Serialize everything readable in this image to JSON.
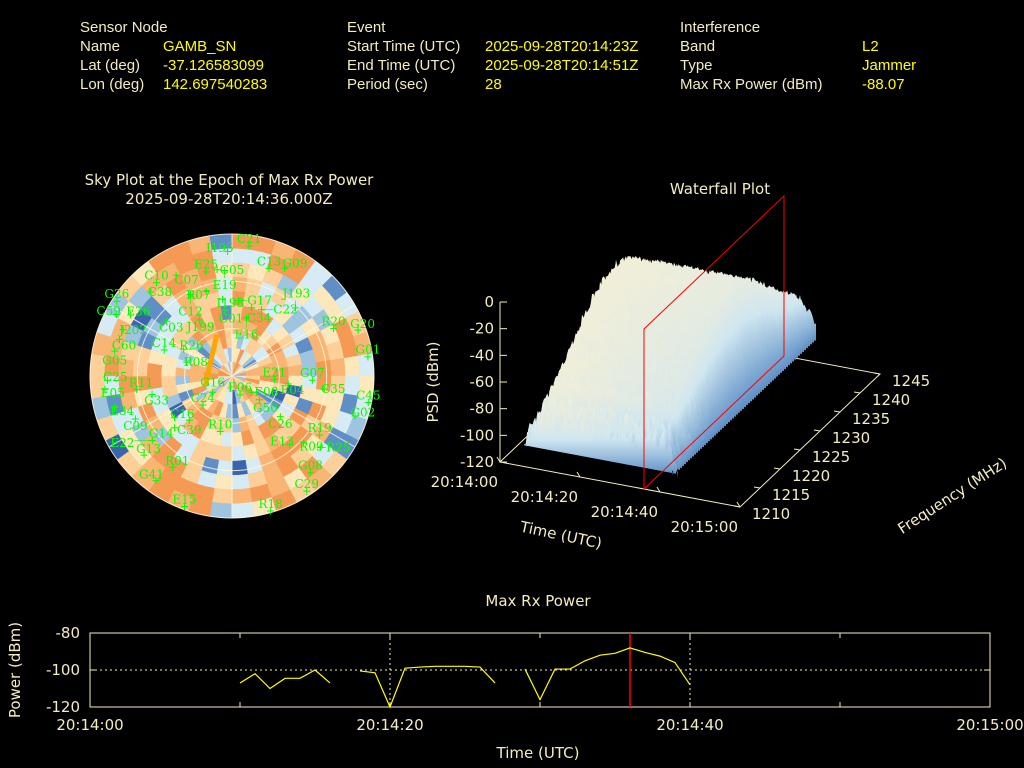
{
  "header": {
    "sensor": {
      "title": "Sensor Node",
      "name_label": "Name",
      "name": "GAMB_SN",
      "lat_label": "Lat (deg)",
      "lat": "-37.126583099",
      "lon_label": "Lon (deg)",
      "lon": "142.697540283"
    },
    "event": {
      "title": "Event",
      "start_label": "Start Time (UTC)",
      "start": "2025-09-28T20:14:23Z",
      "end_label": "End Time (UTC)",
      "end": "2025-09-28T20:14:51Z",
      "period_label": "Period (sec)",
      "period": "28"
    },
    "interference": {
      "title": "Interference",
      "band_label": "Band",
      "band": "L2",
      "type_label": "Type",
      "type": "Jammer",
      "power_label": "Max Rx Power (dBm)",
      "power": "-88.07"
    }
  },
  "colors": {
    "label": "#f3ecc2",
    "value": "#ffff00",
    "satellite": "#00ff00",
    "marker": "#ff0000",
    "trajectory": "#ffa500",
    "series": "#ffff00"
  },
  "chart_data": [
    {
      "type": "scatter",
      "subtype": "polar-sky-plot-with-heatmap",
      "title": "Sky Plot at the Epoch of Max Rx Power",
      "subtitle": "2025-09-28T20:14:36.000Z",
      "elevation_rings": [
        0,
        30,
        60
      ],
      "azimuth_spokes": [
        0,
        60,
        120,
        180,
        240,
        300
      ],
      "satellites": [
        {
          "id": "C21",
          "az": 7.5,
          "el": 7
        },
        {
          "id": "I195",
          "az": 358,
          "el": 11
        },
        {
          "id": "E25",
          "az": 346,
          "el": 22
        },
        {
          "id": "C05",
          "az": 352,
          "el": 22
        },
        {
          "id": "E19",
          "az": 356,
          "el": 23
        },
        {
          "id": "C10",
          "az": 321,
          "el": 14
        },
        {
          "id": "C07",
          "az": 331,
          "el": 17
        },
        {
          "id": "C38",
          "az": 316,
          "el": 16
        },
        {
          "id": "C13",
          "az": 19,
          "el": 18
        },
        {
          "id": "G09",
          "az": 26,
          "el": 14
        },
        {
          "id": "R07",
          "az": 343,
          "el": 34
        },
        {
          "id": "I198",
          "az": 353,
          "el": 41
        },
        {
          "id": "G17",
          "az": 5,
          "el": 42
        },
        {
          "id": "C12",
          "az": 333,
          "el": 32
        },
        {
          "id": "C01",
          "az": 354,
          "el": 48
        },
        {
          "id": "C34",
          "az": 16,
          "el": 45
        },
        {
          "id": "C22",
          "az": 24,
          "el": 44
        },
        {
          "id": "J193",
          "az": 43,
          "el": 31
        },
        {
          "id": "E16",
          "az": 14,
          "el": 52
        },
        {
          "id": "G26",
          "az": 303,
          "el": 3
        },
        {
          "id": "E36",
          "az": 301,
          "el": 15
        },
        {
          "id": "C03",
          "az": 310,
          "el": 36
        },
        {
          "id": "J199",
          "az": 330,
          "el": 49
        },
        {
          "id": "C59",
          "az": 298,
          "el": 7
        },
        {
          "id": "J202",
          "az": 293,
          "el": 15
        },
        {
          "id": "C60",
          "az": 288,
          "el": 15
        },
        {
          "id": "C14",
          "az": 291,
          "el": 44
        },
        {
          "id": "R26",
          "az": 299,
          "el": 55
        },
        {
          "id": "R08",
          "az": 287,
          "el": 60
        },
        {
          "id": "G05",
          "az": 282,
          "el": 14
        },
        {
          "id": "C25",
          "az": 268,
          "el": 11
        },
        {
          "id": "R11",
          "az": 262,
          "el": 29
        },
        {
          "id": "G33",
          "az": 257,
          "el": 38
        },
        {
          "id": "E05",
          "az": 264,
          "el": 9
        },
        {
          "id": "E34",
          "az": 255,
          "el": 13
        },
        {
          "id": "C09",
          "az": 246,
          "el": 23
        },
        {
          "id": "C16",
          "az": 234,
          "el": 45
        },
        {
          "id": "C39",
          "az": 224,
          "el": 51
        },
        {
          "id": "C24",
          "az": 225,
          "el": 64
        },
        {
          "id": "G14",
          "az": 228,
          "el": 41
        },
        {
          "id": "G13",
          "az": 228,
          "el": 15
        },
        {
          "id": "R01",
          "az": 213,
          "el": 21
        },
        {
          "id": "G41",
          "az": 216,
          "el": 8
        },
        {
          "id": "E22",
          "az": 231,
          "el": 25
        },
        {
          "id": "E15",
          "az": 200,
          "el": 2
        },
        {
          "id": "R10",
          "az": 192,
          "el": 54
        },
        {
          "id": "G16",
          "az": 230,
          "el": 74
        },
        {
          "id": "E06",
          "az": 157,
          "el": 77
        },
        {
          "id": "E08",
          "az": 130,
          "el": 74
        },
        {
          "id": "G50",
          "az": 131,
          "el": 67
        },
        {
          "id": "E21",
          "az": 95,
          "el": 63
        },
        {
          "id": "E04",
          "az": 98,
          "el": 54
        },
        {
          "id": "G07",
          "az": 93,
          "el": 39
        },
        {
          "id": "C35",
          "az": 98,
          "el": 31
        },
        {
          "id": "R20",
          "az": 65,
          "el": 19
        },
        {
          "id": "G20",
          "az": 70,
          "el": 5
        },
        {
          "id": "G01",
          "az": 82,
          "el": 3
        },
        {
          "id": "C45",
          "az": 101,
          "el": 2
        },
        {
          "id": "G02",
          "az": 108,
          "el": 8
        },
        {
          "id": "C26",
          "az": 130,
          "el": 50
        },
        {
          "id": "R19",
          "az": 124,
          "el": 23
        },
        {
          "id": "E13",
          "az": 140,
          "el": 33
        },
        {
          "id": "R09",
          "az": 133,
          "el": 28
        },
        {
          "id": "R25",
          "az": 129,
          "el": 18
        },
        {
          "id": "G08",
          "az": 141,
          "el": 11
        },
        {
          "id": "C29",
          "az": 147,
          "el": 3
        },
        {
          "id": "R18",
          "az": 164,
          "el": 1
        }
      ],
      "trajectory": [
        {
          "az": 250,
          "el": 72
        },
        {
          "az": 340,
          "el": 62
        }
      ]
    },
    {
      "type": "surface",
      "title": "Waterfall Plot",
      "xlabel": "Time (UTC)",
      "ylabel": "Frequency (MHz)",
      "zlabel": "PSD (dBm)",
      "xticks": [
        "20:14:00",
        "20:14:20",
        "20:14:40",
        "20:15:00"
      ],
      "yticks": [
        "1210",
        "1215",
        "1220",
        "1225",
        "1230",
        "1235",
        "1240",
        "1245"
      ],
      "zticks": [
        "0",
        "-20",
        "-40",
        "-60",
        "-80",
        "-100",
        "-120"
      ],
      "xlim_sec": [
        0,
        60
      ],
      "ylim": [
        1210,
        1245
      ],
      "zlim": [
        -120,
        0
      ],
      "marker_time": "20:14:36"
    },
    {
      "type": "line",
      "title": "Max Rx Power",
      "xlabel": "Time (UTC)",
      "ylabel": "Power (dBm)",
      "xticks": [
        "20:14:00",
        "20:14:20",
        "20:14:40",
        "20:15:00"
      ],
      "yticks": [
        "-80",
        "-100",
        "-120"
      ],
      "xlim_sec": [
        0,
        60
      ],
      "ylim": [
        -120,
        -80
      ],
      "grid": true,
      "marker_time": "20:14:36",
      "series": [
        {
          "segments": [
            [
              [
                10,
                -107
              ],
              [
                11,
                -102
              ],
              [
                12,
                -110
              ],
              [
                13,
                -104.5
              ],
              [
                14,
                -104.5
              ],
              [
                15,
                -100
              ],
              [
                16,
                -107
              ]
            ],
            [
              [
                18,
                -100.5
              ],
              [
                19,
                -101.5
              ],
              [
                20,
                -120
              ],
              [
                21,
                -99
              ],
              [
                22,
                -98.4
              ],
              [
                23,
                -98
              ],
              [
                24,
                -98
              ],
              [
                25,
                -98
              ],
              [
                26,
                -98.4
              ],
              [
                27,
                -107
              ]
            ],
            [
              [
                29,
                -99.5
              ],
              [
                30,
                -116
              ],
              [
                31,
                -99.5
              ],
              [
                32,
                -99.5
              ],
              [
                33,
                -95
              ],
              [
                34,
                -92
              ],
              [
                35,
                -91
              ],
              [
                36,
                -88.07
              ],
              [
                37,
                -90.5
              ],
              [
                38,
                -92.5
              ],
              [
                39,
                -96
              ],
              [
                40,
                -108
              ]
            ]
          ]
        }
      ]
    }
  ]
}
